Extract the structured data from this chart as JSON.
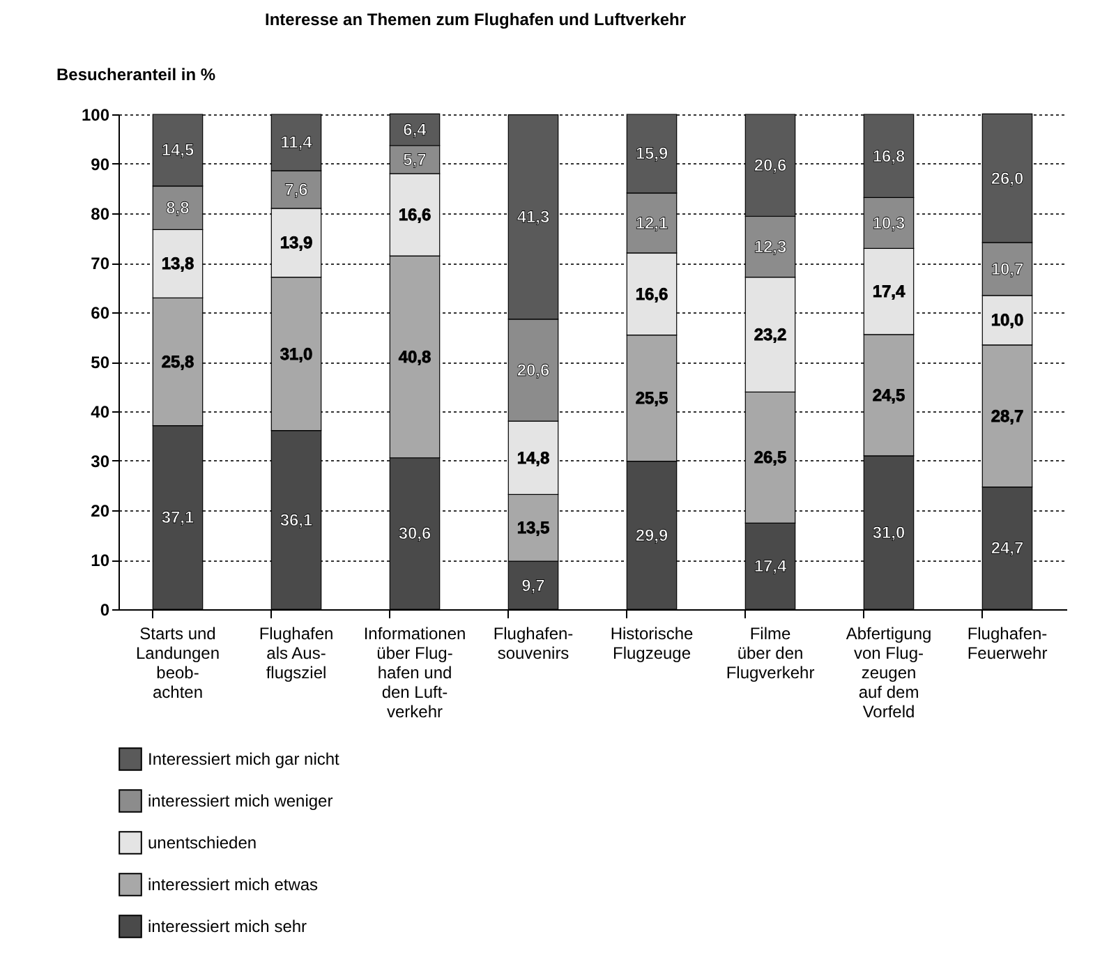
{
  "chart_data": {
    "type": "bar",
    "title": "Interesse an Themen zum Flughafen und Luftverkehr",
    "ylabel": "Besucheranteil in %",
    "categories": [
      "Starts und\nLandungen\nbeob-\nachten",
      "Flughafen\nals Aus-\nflugsziel",
      "Informationen\nüber Flug-\nhafen und\nden Luft-\nverkehr",
      "Flughafen-\nsouvenirs",
      "Historische\nFlugzeuge",
      "Filme\nüber den\nFlugverkehr",
      "Abfertigung\nvon Flug-\nzeugen\nauf dem\nVorfeld",
      "Flughafen-\nFeuerwehr"
    ],
    "stacked": true,
    "ylim": [
      0,
      100
    ],
    "yticks": [
      0,
      10,
      20,
      30,
      40,
      50,
      60,
      70,
      80,
      90,
      100
    ],
    "grid": "y",
    "legend": "bottom",
    "series": [
      {
        "name": "interessiert mich sehr",
        "color": "#4a4a4a",
        "values": [
          37.1,
          36.1,
          30.6,
          9.7,
          29.9,
          17.4,
          31.0,
          24.7
        ],
        "value_labels": [
          "37,1",
          "36,1",
          "30,6",
          "9,7",
          "29,9",
          "17,4",
          "31,0",
          "24,7"
        ]
      },
      {
        "name": "interessiert mich etwas",
        "color": "#a8a8a8",
        "values": [
          25.8,
          31.0,
          40.8,
          13.5,
          25.5,
          26.5,
          24.5,
          28.7
        ],
        "value_labels": [
          "25,8",
          "31,0",
          "40,8",
          "13,5",
          "25,5",
          "26,5",
          "24,5",
          "28,7"
        ]
      },
      {
        "name": "unentschieden",
        "color": "#e4e4e4",
        "values": [
          13.8,
          13.9,
          16.6,
          14.8,
          16.6,
          23.2,
          17.4,
          10.0
        ],
        "value_labels": [
          "13,8",
          "13,9",
          "16,6",
          "14,8",
          "16,6",
          "23,2",
          "17,4",
          "10,0"
        ]
      },
      {
        "name": "interessiert mich weniger",
        "color": "#8c8c8c",
        "values": [
          8.8,
          7.6,
          5.7,
          20.6,
          12.1,
          12.3,
          10.3,
          10.7
        ],
        "value_labels": [
          "8,8",
          "7,6",
          "5,7",
          "20,6",
          "12,1",
          "12,3",
          "10,3",
          "10,7"
        ]
      },
      {
        "name": "Interessiert mich gar nicht",
        "color": "#5a5a5a",
        "values": [
          14.5,
          11.4,
          6.4,
          41.3,
          15.9,
          20.6,
          16.8,
          26.0
        ],
        "value_labels": [
          "14,5",
          "11,4",
          "6,4",
          "41,3",
          "15,9",
          "20,6",
          "16,8",
          "26,0"
        ]
      }
    ]
  }
}
